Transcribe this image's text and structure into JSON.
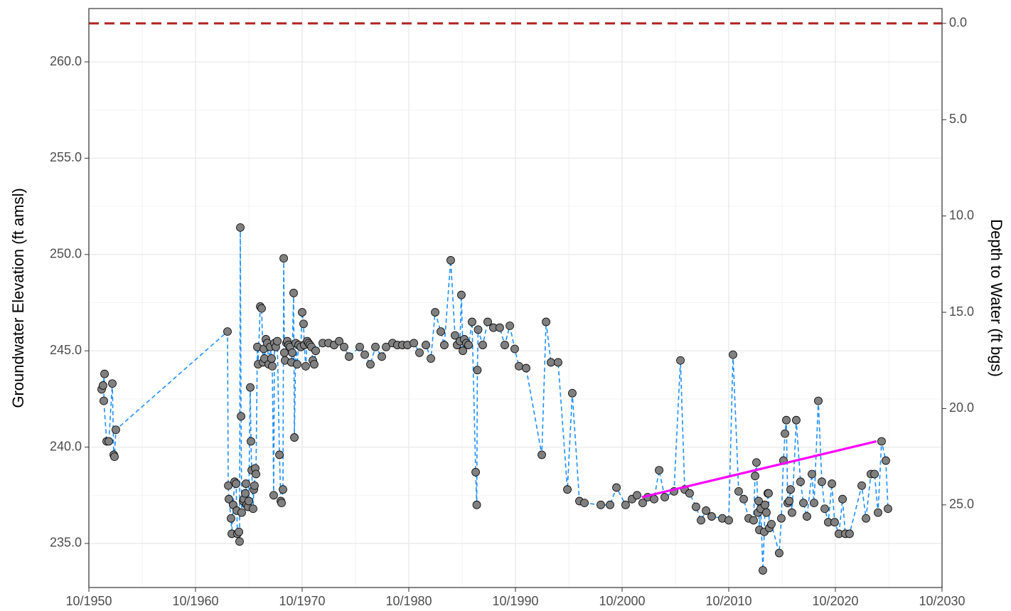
{
  "chart_data": {
    "type": "line",
    "y_label": "Groundwater Elevation (ft amsl)",
    "y2_label": "Depth to Water (ft bgs)",
    "xlim": [
      1950.75,
      2030.75
    ],
    "xticks": [
      {
        "value": 1950.75,
        "label": "10/1950"
      },
      {
        "value": 1960.75,
        "label": "10/1960"
      },
      {
        "value": 1970.75,
        "label": "10/1970"
      },
      {
        "value": 1980.75,
        "label": "10/1980"
      },
      {
        "value": 1990.75,
        "label": "10/1990"
      },
      {
        "value": 2000.75,
        "label": "10/2000"
      },
      {
        "value": 2010.75,
        "label": "10/2010"
      },
      {
        "value": 2020.75,
        "label": "10/2020"
      },
      {
        "value": 2030.75,
        "label": "10/2030"
      }
    ],
    "ylim": [
      232.71,
      262.77
    ],
    "yticks": [
      {
        "value": 235,
        "label": "235.0"
      },
      {
        "value": 240,
        "label": "240.0"
      },
      {
        "value": 245,
        "label": "245.0"
      },
      {
        "value": 250,
        "label": "250.0"
      },
      {
        "value": 255,
        "label": "255.0"
      },
      {
        "value": 260,
        "label": "260.0"
      }
    ],
    "y2lim": [
      -0.77,
      29.29
    ],
    "y2ticks": [
      {
        "value": 0,
        "label": "0.0"
      },
      {
        "value": 5,
        "label": "5.0"
      },
      {
        "value": 10,
        "label": "10.0"
      },
      {
        "value": 15,
        "label": "15.0"
      },
      {
        "value": 20,
        "label": "20.0"
      },
      {
        "value": 25,
        "label": "25.0"
      }
    ],
    "grid": true,
    "reference_lines": [
      {
        "axis": "y2",
        "value": 0,
        "color": "#b22222",
        "style": "dashed"
      }
    ],
    "series": [
      {
        "color": "#1e90ff",
        "marker_color": "#808080",
        "style": "dashed",
        "markers": true,
        "x": [
          1951.95,
          1952.08,
          1952.22,
          1952.15,
          1952.42,
          1952.62,
          1952.95,
          1953.08,
          1953.15,
          1953.28,
          1963.75,
          1963.82,
          1963.88,
          1964.08,
          1964.15,
          1964.28,
          1964.42,
          1964.55,
          1964.62,
          1964.68,
          1964.82,
          1964.88,
          1964.95,
          1965.02,
          1965.08,
          1965.22,
          1965.28,
          1965.42,
          1965.48,
          1965.55,
          1965.68,
          1965.75,
          1965.88,
          1965.95,
          1966.02,
          1966.15,
          1966.22,
          1966.28,
          1966.35,
          1966.42,
          1966.55,
          1966.62,
          1966.82,
          1966.95,
          1967.08,
          1967.15,
          1967.22,
          1967.35,
          1967.48,
          1967.62,
          1967.75,
          1967.88,
          1967.95,
          1968.08,
          1968.15,
          1968.28,
          1968.42,
          1968.62,
          1968.75,
          1968.82,
          1968.95,
          1969.02,
          1969.08,
          1969.15,
          1969.28,
          1969.35,
          1969.48,
          1969.62,
          1969.75,
          1969.82,
          1969.95,
          1970.02,
          1970.15,
          1970.28,
          1970.42,
          1970.62,
          1970.75,
          1970.88,
          1970.95,
          1971.08,
          1971.22,
          1971.35,
          1971.48,
          1971.62,
          1971.75,
          1971.88,
          1972.02,
          1972.68,
          1973.22,
          1973.75,
          1974.22,
          1974.68,
          1975.15,
          1976.15,
          1976.62,
          1977.15,
          1977.62,
          1978.22,
          1978.62,
          1979.22,
          1979.68,
          1980.15,
          1980.62,
          1981.22,
          1981.75,
          1982.35,
          1982.82,
          1983.22,
          1983.75,
          1984.08,
          1984.68,
          1985.08,
          1985.28,
          1985.55,
          1985.68,
          1985.82,
          1985.95,
          1986.15,
          1986.35,
          1986.68,
          1987.02,
          1987.12,
          1987.18,
          1987.25,
          1987.68,
          1988.15,
          1988.68,
          1989.28,
          1989.75,
          1990.22,
          1990.68,
          1991.08,
          1991.75,
          1993.22,
          1993.62,
          1994.08,
          1994.75,
          1995.62,
          1996.08,
          1996.75,
          1997.22,
          1998.75,
          1999.62,
          2000.22,
          2001.08,
          2001.68,
          2002.15,
          2002.68,
          2003.15,
          2003.75,
          2004.22,
          2004.75,
          2005.62,
          2006.22,
          2006.62,
          2007.08,
          2007.68,
          2008.15,
          2008.62,
          2009.15,
          2010.15,
          2010.75,
          2011.15,
          2011.68,
          2012.15,
          2012.62,
          2013.08,
          2013.22,
          2013.35,
          2013.48,
          2013.55,
          2013.62,
          2013.75,
          2013.95,
          2014.08,
          2014.15,
          2014.28,
          2014.42,
          2014.48,
          2014.55,
          2014.75,
          2015.48,
          2015.68,
          2015.88,
          2016.02,
          2016.15,
          2016.28,
          2016.42,
          2016.55,
          2016.68,
          2017.08,
          2017.48,
          2017.75,
          2018.08,
          2018.55,
          2018.75,
          2019.15,
          2019.48,
          2019.75,
          2020.08,
          2020.42,
          2020.68,
          2021.08,
          2021.42,
          2021.68,
          2022.08,
          2023.22,
          2023.62,
          2024.08,
          2024.42,
          2024.75,
          2025.08,
          2025.48,
          2025.68
        ],
        "values": [
          243.0,
          243.2,
          243.8,
          242.4,
          240.3,
          240.3,
          243.3,
          239.6,
          239.5,
          240.9,
          246.0,
          238.0,
          237.3,
          236.3,
          235.5,
          237.0,
          238.2,
          238.1,
          236.7,
          235.5,
          235.6,
          235.1,
          251.4,
          241.6,
          236.6,
          237.2,
          237.3,
          237.6,
          238.1,
          237.0,
          236.9,
          237.2,
          243.1,
          240.3,
          238.8,
          236.8,
          237.8,
          238.0,
          238.9,
          238.6,
          245.2,
          244.3,
          247.3,
          247.2,
          244.4,
          245.1,
          244.6,
          245.6,
          245.4,
          244.3,
          245.2,
          244.6,
          244.2,
          237.5,
          245.4,
          245.2,
          245.5,
          239.6,
          237.2,
          237.1,
          237.8,
          249.8,
          244.9,
          244.5,
          245.4,
          245.5,
          245.3,
          245.2,
          244.4,
          244.9,
          248.0,
          240.5,
          245.4,
          244.3,
          245.3,
          245.2,
          247.0,
          246.4,
          245.3,
          244.2,
          245.5,
          245.4,
          245.3,
          245.2,
          244.5,
          244.3,
          245.0,
          245.4,
          245.4,
          245.3,
          245.5,
          245.2,
          244.7,
          245.2,
          244.8,
          244.3,
          245.2,
          244.7,
          245.2,
          245.4,
          245.3,
          245.3,
          245.3,
          245.4,
          244.9,
          245.3,
          244.6,
          247.0,
          246.0,
          245.3,
          249.7,
          245.8,
          245.3,
          245.5,
          247.9,
          245.0,
          245.6,
          245.4,
          245.3,
          246.5,
          238.7,
          237.0,
          244.0,
          246.1,
          245.3,
          246.5,
          246.2,
          246.2,
          245.3,
          246.3,
          245.1,
          244.2,
          244.1,
          239.6,
          246.5,
          244.4,
          244.4,
          237.8,
          242.8,
          237.2,
          237.1,
          237.0,
          237.0,
          237.9,
          237.0,
          237.3,
          237.5,
          237.1,
          237.4,
          237.3,
          238.8,
          237.4,
          237.7,
          244.5,
          237.8,
          237.6,
          236.9,
          236.2,
          236.7,
          236.4,
          236.3,
          236.2,
          244.8,
          237.7,
          237.3,
          236.3,
          236.2,
          238.5,
          239.2,
          236.6,
          237.2,
          235.7,
          236.8,
          233.6,
          235.6,
          237.0,
          236.6,
          237.6,
          237.6,
          235.8,
          236.0,
          234.5,
          236.3,
          239.3,
          240.7,
          241.4,
          237.1,
          237.2,
          237.8,
          236.6,
          241.4,
          238.2,
          237.1,
          236.4,
          238.6,
          237.1,
          242.4,
          238.2,
          236.8,
          236.1,
          238.1,
          236.1,
          235.5,
          237.3,
          235.5,
          235.5,
          238.0,
          236.3,
          238.6,
          238.6,
          236.6,
          240.3,
          239.3,
          236.8
        ]
      },
      {
        "color": "#ff00ff",
        "style": "solid",
        "markers": false,
        "x": [
          2002.6,
          2024.6
        ],
        "values": [
          237.4,
          240.3
        ]
      }
    ]
  }
}
